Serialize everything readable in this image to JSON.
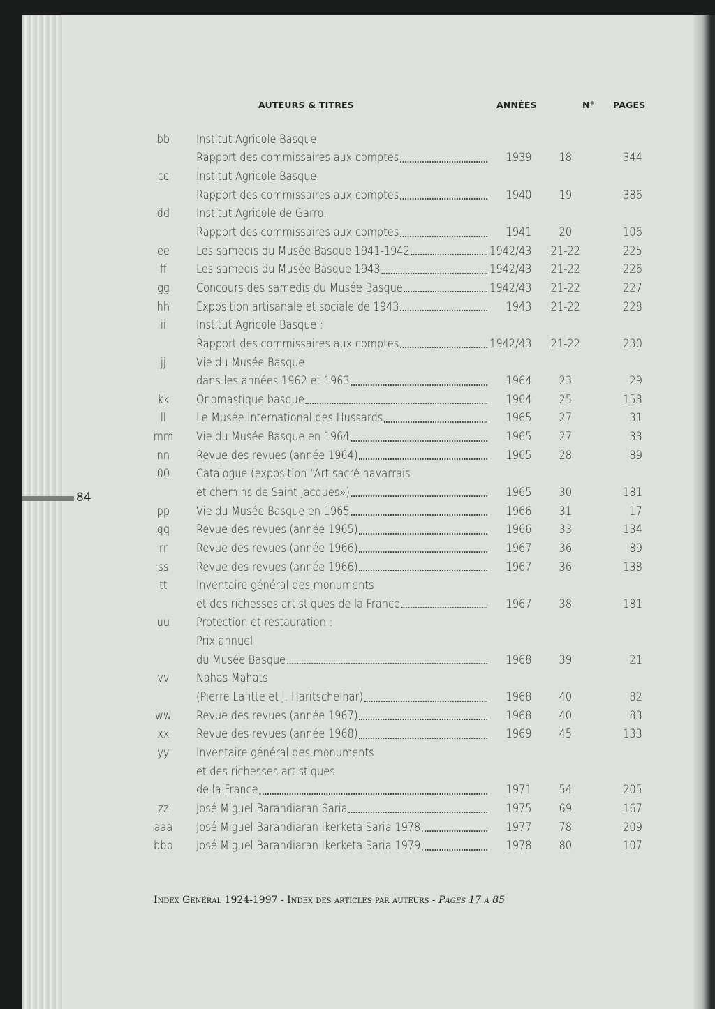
{
  "header": {
    "col_authors": "AUTEURS & TITRES",
    "col_years": "ANNÉES",
    "col_num": "N°",
    "col_pages": "PAGES"
  },
  "page_number": "84",
  "rows": [
    {
      "code": "bb",
      "text": "Institut Agricole Basque.",
      "year": "",
      "num": "",
      "pages": ""
    },
    {
      "code": "",
      "text": "Rapport des commissaires aux comptes",
      "year": "1939",
      "num": "18",
      "pages": "344"
    },
    {
      "code": "cc",
      "text": "Institut Agricole Basque.",
      "year": "",
      "num": "",
      "pages": ""
    },
    {
      "code": "",
      "text": "Rapport des commissaires aux comptes",
      "year": "1940",
      "num": "19",
      "pages": "386"
    },
    {
      "code": "dd",
      "text": "Institut Agricole de Garro.",
      "year": "",
      "num": "",
      "pages": ""
    },
    {
      "code": "",
      "text": "Rapport des commissaires aux comptes",
      "year": "1941",
      "num": "20",
      "pages": "106"
    },
    {
      "code": "ee",
      "text": "Les samedis du Musée Basque 1941-1942",
      "year": "1942/43",
      "num": "21-22",
      "pages": "225"
    },
    {
      "code": "ff",
      "text": "Les samedis du Musée Basque 1943",
      "year": "1942/43",
      "num": "21-22",
      "pages": "226"
    },
    {
      "code": "gg",
      "text": "Concours des samedis du Musée Basque",
      "year": "1942/43",
      "num": "21-22",
      "pages": "227"
    },
    {
      "code": "hh",
      "text": "Exposition artisanale et sociale de 1943",
      "year": "1943",
      "num": "21-22",
      "pages": "228"
    },
    {
      "code": "ii",
      "text": "Institut Agricole Basque :",
      "year": "",
      "num": "",
      "pages": ""
    },
    {
      "code": "",
      "text": "Rapport des commissaires aux comptes",
      "year": "1942/43",
      "num": "21-22",
      "pages": "230"
    },
    {
      "code": "jj",
      "text": "Vie du Musée Basque",
      "year": "",
      "num": "",
      "pages": ""
    },
    {
      "code": "",
      "text": "dans les années 1962 et 1963",
      "year": "1964",
      "num": "23",
      "pages": "29"
    },
    {
      "code": "kk",
      "text": "Onomastique basque",
      "year": "1964",
      "num": "25",
      "pages": "153"
    },
    {
      "code": "ll",
      "text": "Le Musée International des Hussards",
      "year": "1965",
      "num": "27",
      "pages": "31"
    },
    {
      "code": "mm",
      "text": "Vie du Musée Basque en 1964",
      "year": "1965",
      "num": "27",
      "pages": "33"
    },
    {
      "code": "nn",
      "text": "Revue des revues (année 1964)",
      "year": "1965",
      "num": "28",
      "pages": "89"
    },
    {
      "code": "00",
      "text": "Catalogue (exposition “Art sacré navarrais",
      "year": "",
      "num": "",
      "pages": ""
    },
    {
      "code": "",
      "text": "et chemins de Saint Jacques»)",
      "year": "1965",
      "num": "30",
      "pages": "181"
    },
    {
      "code": "pp",
      "text": "Vie du Musée Basque en 1965",
      "year": "1966",
      "num": "31",
      "pages": "17"
    },
    {
      "code": "qq",
      "text": "Revue des revues (année 1965)",
      "year": "1966",
      "num": "33",
      "pages": "134"
    },
    {
      "code": "rr",
      "text": "Revue des revues (année 1966)",
      "year": "1967",
      "num": "36",
      "pages": "89"
    },
    {
      "code": "ss",
      "text": "Revue des revues (année 1966)",
      "year": "1967",
      "num": "36",
      "pages": "138"
    },
    {
      "code": "tt",
      "text": "Inventaire général des monuments",
      "year": "",
      "num": "",
      "pages": ""
    },
    {
      "code": "",
      "text": "et des richesses artistiques de la France",
      "year": "1967",
      "num": "38",
      "pages": "181"
    },
    {
      "code": "uu",
      "text": "Protection et restauration :",
      "year": "",
      "num": "",
      "pages": ""
    },
    {
      "code": "",
      "text": "Prix annuel",
      "year": "",
      "num": "",
      "pages": ""
    },
    {
      "code": "",
      "text": "du Musée Basque",
      "year": "1968",
      "num": "39",
      "pages": "21"
    },
    {
      "code": "vv",
      "text": "Nahas Mahats",
      "year": "",
      "num": "",
      "pages": ""
    },
    {
      "code": "",
      "text": "(Pierre Lafitte et J. Haritschelhar)",
      "year": "1968",
      "num": "40",
      "pages": "82"
    },
    {
      "code": "ww",
      "text": "Revue des revues (année 1967)",
      "year": "1968",
      "num": "40",
      "pages": "83"
    },
    {
      "code": "xx",
      "text": "Revue des revues (année 1968)",
      "year": "1969",
      "num": "45",
      "pages": "133"
    },
    {
      "code": "yy",
      "text": "Inventaire général des monuments",
      "year": "",
      "num": "",
      "pages": ""
    },
    {
      "code": "",
      "text": "et des richesses artistiques",
      "year": "",
      "num": "",
      "pages": ""
    },
    {
      "code": "",
      "text": "de la France",
      "year": "1971",
      "num": "54",
      "pages": "205"
    },
    {
      "code": "zz",
      "text": "José Miguel Barandiaran Saria",
      "year": "1975",
      "num": "69",
      "pages": "167"
    },
    {
      "code": "aaa",
      "text": "José Miguel Barandiaran Ikerketa Saria 1978",
      "year": "1977",
      "num": "78",
      "pages": "209"
    },
    {
      "code": "bbb",
      "text": "José Miguel Barandiaran Ikerketa Saria 1979",
      "year": "1978",
      "num": "80",
      "pages": "107"
    }
  ],
  "footer": {
    "main": "Index Général 1924-1997 - Index des articles par auteurs - ",
    "pages": "Pages 17 à 85"
  }
}
